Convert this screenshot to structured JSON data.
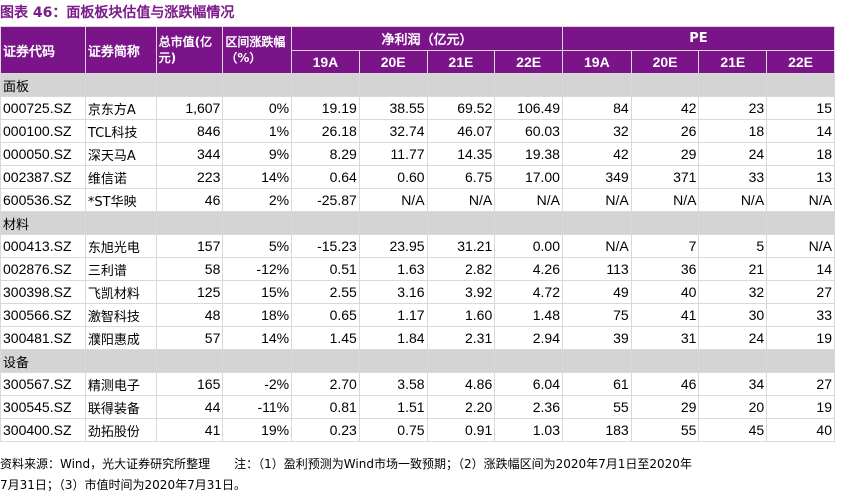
{
  "title": "图表 46：面板板块估值与涨跌幅情况",
  "header": {
    "code": "证券代码",
    "name": "证券简称",
    "mktcap": "总市值(亿元)",
    "change": "区间涨跌幅（%）",
    "profit_group": "净利润（亿元）",
    "pe_group": "PE",
    "profit_years": [
      "19A",
      "20E",
      "21E",
      "22E"
    ],
    "pe_years": [
      "19A",
      "20E",
      "21E",
      "22E"
    ]
  },
  "sections": [
    {
      "label": "面板",
      "rows": [
        {
          "code": "000725.SZ",
          "name": "京东方A",
          "cap": "1,607",
          "chg": "0%",
          "p": [
            "19.19",
            "38.55",
            "69.52",
            "106.49"
          ],
          "pe": [
            "84",
            "42",
            "23",
            "15"
          ]
        },
        {
          "code": "000100.SZ",
          "name": "TCL科技",
          "cap": "846",
          "chg": "1%",
          "p": [
            "26.18",
            "32.74",
            "46.07",
            "60.03"
          ],
          "pe": [
            "32",
            "26",
            "18",
            "14"
          ]
        },
        {
          "code": "000050.SZ",
          "name": "深天马A",
          "cap": "344",
          "chg": "9%",
          "p": [
            "8.29",
            "11.77",
            "14.35",
            "19.38"
          ],
          "pe": [
            "42",
            "29",
            "24",
            "18"
          ]
        },
        {
          "code": "002387.SZ",
          "name": "维信诺",
          "cap": "223",
          "chg": "14%",
          "p": [
            "0.64",
            "0.60",
            "6.75",
            "17.00"
          ],
          "pe": [
            "349",
            "371",
            "33",
            "13"
          ]
        },
        {
          "code": "600536.SZ",
          "name": "*ST华映",
          "cap": "46",
          "chg": "2%",
          "p": [
            "-25.87",
            "N/A",
            "N/A",
            "N/A"
          ],
          "pe": [
            "N/A",
            "N/A",
            "N/A",
            "N/A"
          ]
        }
      ]
    },
    {
      "label": "材料",
      "rows": [
        {
          "code": "000413.SZ",
          "name": "东旭光电",
          "cap": "157",
          "chg": "5%",
          "p": [
            "-15.23",
            "23.95",
            "31.21",
            "0.00"
          ],
          "pe": [
            "N/A",
            "7",
            "5",
            "N/A"
          ]
        },
        {
          "code": "002876.SZ",
          "name": "三利谱",
          "cap": "58",
          "chg": "-12%",
          "p": [
            "0.51",
            "1.63",
            "2.82",
            "4.26"
          ],
          "pe": [
            "113",
            "36",
            "21",
            "14"
          ]
        },
        {
          "code": "300398.SZ",
          "name": "飞凯材料",
          "cap": "125",
          "chg": "15%",
          "p": [
            "2.55",
            "3.16",
            "3.92",
            "4.72"
          ],
          "pe": [
            "49",
            "40",
            "32",
            "27"
          ]
        },
        {
          "code": "300566.SZ",
          "name": "激智科技",
          "cap": "48",
          "chg": "18%",
          "p": [
            "0.65",
            "1.17",
            "1.60",
            "1.48"
          ],
          "pe": [
            "75",
            "41",
            "30",
            "33"
          ]
        },
        {
          "code": "300481.SZ",
          "name": "濮阳惠成",
          "cap": "57",
          "chg": "14%",
          "p": [
            "1.45",
            "1.84",
            "2.31",
            "2.94"
          ],
          "pe": [
            "39",
            "31",
            "24",
            "19"
          ]
        }
      ]
    },
    {
      "label": "设备",
      "rows": [
        {
          "code": "300567.SZ",
          "name": "精测电子",
          "cap": "165",
          "chg": "-2%",
          "p": [
            "2.70",
            "3.58",
            "4.86",
            "6.04"
          ],
          "pe": [
            "61",
            "46",
            "34",
            "27"
          ]
        },
        {
          "code": "300545.SZ",
          "name": "联得装备",
          "cap": "44",
          "chg": "-11%",
          "p": [
            "0.81",
            "1.51",
            "2.20",
            "2.36"
          ],
          "pe": [
            "55",
            "29",
            "20",
            "19"
          ]
        },
        {
          "code": "300400.SZ",
          "name": "劲拓股份",
          "cap": "41",
          "chg": "19%",
          "p": [
            "0.23",
            "0.75",
            "0.91",
            "1.03"
          ],
          "pe": [
            "183",
            "55",
            "45",
            "40"
          ]
        }
      ]
    }
  ],
  "footnote_line1": "资料来源：Wind，光大证券研究所整理　　注：（1）盈利预测为Wind市场一致预期；（2）涨跌幅区间为2020年7月1日至2020年",
  "footnote_line2": "7月31日；（3）市值时间为2020年7月31日。",
  "colors": {
    "header_bg": "#7a1488",
    "title": "#7b1a8a",
    "section_bg": "#d4d4d4"
  }
}
